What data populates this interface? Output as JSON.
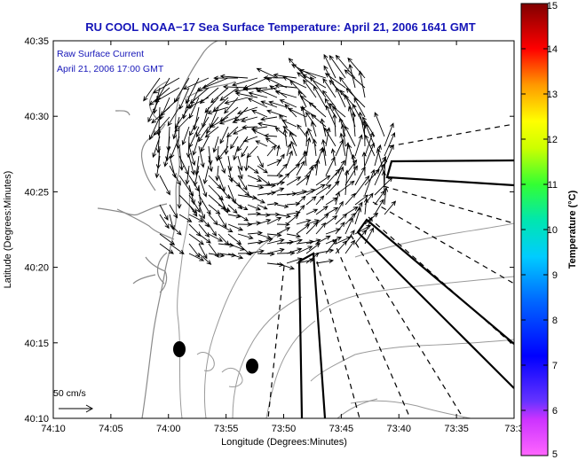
{
  "chart_data": {
    "type": "map",
    "title": "RU COOL  NOAA−17  Sea Surface Temperature:  April 21, 2006 1641 GMT",
    "annotation": [
      "Raw Surface Current",
      "April 21, 2006 17:00 GMT"
    ],
    "xlabel": "Longitude (Degrees:Minutes)",
    "ylabel": "Latitude (Degrees:Minutes)",
    "x_tick_labels": [
      "74:10",
      "74:05",
      "74:00",
      "73:55",
      "73:50",
      "73:45",
      "73:40",
      "73:35",
      "73:3"
    ],
    "x_tick_values_min": [
      -10,
      -5,
      0,
      5,
      10,
      15,
      20,
      25,
      30
    ],
    "y_tick_labels": [
      "40:35",
      "40:30",
      "40:25",
      "40:20",
      "40:15",
      "40:10"
    ],
    "y_tick_values_min": [
      35,
      30,
      25,
      20,
      15,
      10
    ],
    "xlim_min_west_of_74": [
      -10,
      30
    ],
    "ylim_min_north_of_40": [
      10,
      35
    ],
    "colorbar": {
      "label": "Temperature (°C)",
      "range": [
        5,
        15
      ],
      "tick_labels": [
        "15",
        "14",
        "13",
        "12",
        "11",
        "10",
        "9",
        "8",
        "7",
        "6",
        "5"
      ]
    },
    "current_scale_label": "50 cm/s",
    "stations_min": [
      {
        "lon": 0.8,
        "lat": 14.7
      },
      {
        "lon": 2.2,
        "lat": 13.5
      }
    ],
    "cross_shelf_transects": [
      {
        "dashed": true,
        "lat_start": 28.0,
        "lat_end": 29.5
      },
      {
        "dashed": true,
        "lat_start": 26.5,
        "lat_end": 24.5
      },
      {
        "dashed": true,
        "lat_start": 24.0,
        "lat_end": 20.5
      },
      {
        "dashed": true,
        "lat_start": 22.5,
        "lat_end": 18.8
      }
    ],
    "ribbon_sections": 4,
    "vector_grid": "raw surface current field over the Hudson shelf"
  }
}
